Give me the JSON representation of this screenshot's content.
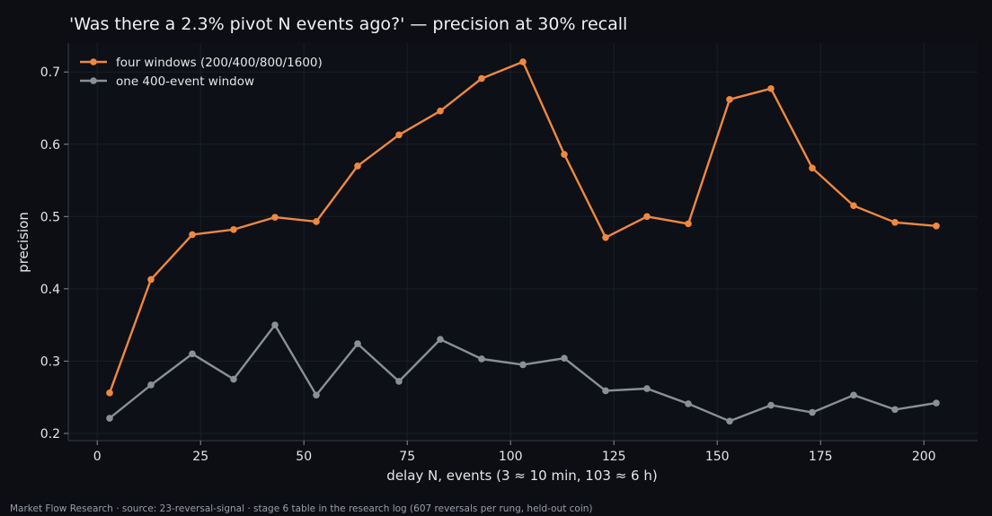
{
  "chart_data": {
    "type": "line",
    "title": "'Was there a 2.3% pivot N events ago?' — precision at 30% recall",
    "xlabel": "delay N, events (3 ≈ 10 min, 103 ≈ 6 h)",
    "ylabel": "precision",
    "x": [
      3,
      13,
      23,
      33,
      43,
      53,
      63,
      73,
      83,
      93,
      103,
      113,
      123,
      133,
      143,
      153,
      163,
      173,
      183,
      193,
      203
    ],
    "xlim": [
      -7,
      213
    ],
    "ylim": [
      0.19,
      0.74
    ],
    "xticks": [
      0,
      25,
      50,
      75,
      100,
      125,
      150,
      175,
      200
    ],
    "xtick_labels": [
      "0",
      "25",
      "50",
      "75",
      "100",
      "125",
      "150",
      "175",
      "200"
    ],
    "yticks": [
      0.2,
      0.3,
      0.4,
      0.5,
      0.6,
      0.7
    ],
    "ytick_labels": [
      "0.2",
      "0.3",
      "0.4",
      "0.5",
      "0.6",
      "0.7"
    ],
    "grid": true,
    "legend_position": "top-left",
    "series": [
      {
        "name": "four windows (200/400/800/1600)",
        "color": "#f0883e",
        "values": [
          0.256,
          0.413,
          0.475,
          0.482,
          0.499,
          0.493,
          0.57,
          0.613,
          0.646,
          0.691,
          0.714,
          0.586,
          0.471,
          0.5,
          0.49,
          0.662,
          0.677,
          0.567,
          0.515,
          0.492,
          0.487
        ]
      },
      {
        "name": "one 400-event window",
        "color": "#8b9098",
        "values": [
          0.221,
          0.267,
          0.31,
          0.275,
          0.35,
          0.253,
          0.324,
          0.272,
          0.33,
          0.303,
          0.295,
          0.304,
          0.259,
          0.262,
          0.241,
          0.217,
          0.239,
          0.229,
          0.253,
          0.233,
          0.242
        ]
      }
    ]
  },
  "footer": {
    "text": "Market Flow Research · source: 23-reversal-signal · stage 6 table in the research log (607 reversals per rung, held-out coin)"
  },
  "colors": {
    "background": "#0c0e14",
    "axes_background": "#0d1017",
    "grid": "#1b1f27",
    "spine": "#3a3e46"
  }
}
